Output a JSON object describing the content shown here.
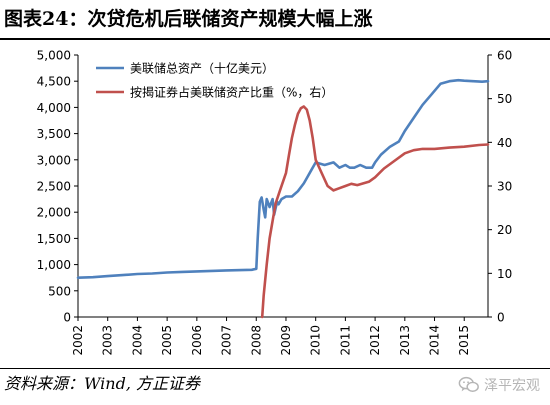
{
  "header": {
    "title": "图表24：次贷危机后联储资产规模大幅上涨"
  },
  "footer": {
    "source": "资料来源：Wind, 方正证券",
    "watermark": "泽平宏观",
    "watermark_icon": "wechat-icon"
  },
  "chart_data": {
    "type": "line",
    "title": "",
    "x_ticks": [
      "2002",
      "2003",
      "2004",
      "2005",
      "2006",
      "2007",
      "2008",
      "2009",
      "2010",
      "2011",
      "2012",
      "2013",
      "2014",
      "2015"
    ],
    "xlim": [
      2002,
      2015.8
    ],
    "left_axis": {
      "ticks": [
        "0",
        "500",
        "1,000",
        "1,500",
        "2,000",
        "2,500",
        "3,000",
        "3,500",
        "4,000",
        "4,500",
        "5,000"
      ],
      "ylim": [
        0,
        5000
      ]
    },
    "right_axis": {
      "ticks": [
        "0",
        "10",
        "20",
        "30",
        "40",
        "50",
        "60"
      ],
      "ylim": [
        0,
        60
      ]
    },
    "grid": false,
    "legend_position": "top-left",
    "series": [
      {
        "name": "美联储总资产（十亿美元）",
        "axis": "left",
        "color": "#4f81bd",
        "x": [
          2002.0,
          2002.5,
          2003.0,
          2003.5,
          2004.0,
          2004.5,
          2005.0,
          2005.5,
          2006.0,
          2006.5,
          2007.0,
          2007.5,
          2007.85,
          2008.0,
          2008.05,
          2008.12,
          2008.18,
          2008.25,
          2008.3,
          2008.35,
          2008.45,
          2008.55,
          2008.6,
          2008.7,
          2008.75,
          2008.85,
          2009.0,
          2009.2,
          2009.4,
          2009.6,
          2009.7,
          2009.85,
          2010.0,
          2010.3,
          2010.6,
          2010.8,
          2011.0,
          2011.15,
          2011.3,
          2011.5,
          2011.7,
          2011.9,
          2012.0,
          2012.2,
          2012.5,
          2012.8,
          2013.0,
          2013.3,
          2013.6,
          2013.9,
          2014.2,
          2014.5,
          2014.8,
          2015.0,
          2015.3,
          2015.6,
          2015.8
        ],
        "y": [
          750,
          760,
          780,
          800,
          820,
          830,
          850,
          860,
          870,
          880,
          890,
          895,
          900,
          920,
          1500,
          2200,
          2280,
          2050,
          1900,
          2250,
          2100,
          2250,
          1950,
          2200,
          2150,
          2250,
          2300,
          2300,
          2400,
          2550,
          2650,
          2800,
          2950,
          2900,
          2950,
          2850,
          2900,
          2850,
          2850,
          2900,
          2850,
          2850,
          2950,
          3100,
          3250,
          3350,
          3550,
          3800,
          4050,
          4250,
          4450,
          4500,
          4520,
          4510,
          4500,
          4490,
          4500
        ]
      },
      {
        "name": "按揭证券占美联储资产比重（%，右）",
        "axis": "right",
        "color": "#c0504d",
        "x": [
          2008.2,
          2008.25,
          2008.35,
          2008.45,
          2008.55,
          2008.65,
          2008.8,
          2009.0,
          2009.1,
          2009.2,
          2009.3,
          2009.4,
          2009.5,
          2009.6,
          2009.7,
          2009.8,
          2009.9,
          2010.0,
          2010.2,
          2010.4,
          2010.6,
          2010.8,
          2011.0,
          2011.2,
          2011.4,
          2011.6,
          2011.8,
          2012.0,
          2012.3,
          2012.6,
          2013.0,
          2013.3,
          2013.6,
          2014.0,
          2014.5,
          2015.0,
          2015.5,
          2015.8
        ],
        "y": [
          0,
          5,
          12,
          18,
          22,
          26,
          29,
          33,
          37,
          41,
          44,
          46.5,
          47.8,
          48.2,
          47.5,
          45,
          41,
          36,
          33,
          30,
          29,
          29.5,
          30,
          30.5,
          30.2,
          30.6,
          31,
          32,
          34,
          35.5,
          37.5,
          38.2,
          38.5,
          38.5,
          38.8,
          39,
          39.4,
          39.5
        ]
      }
    ]
  }
}
